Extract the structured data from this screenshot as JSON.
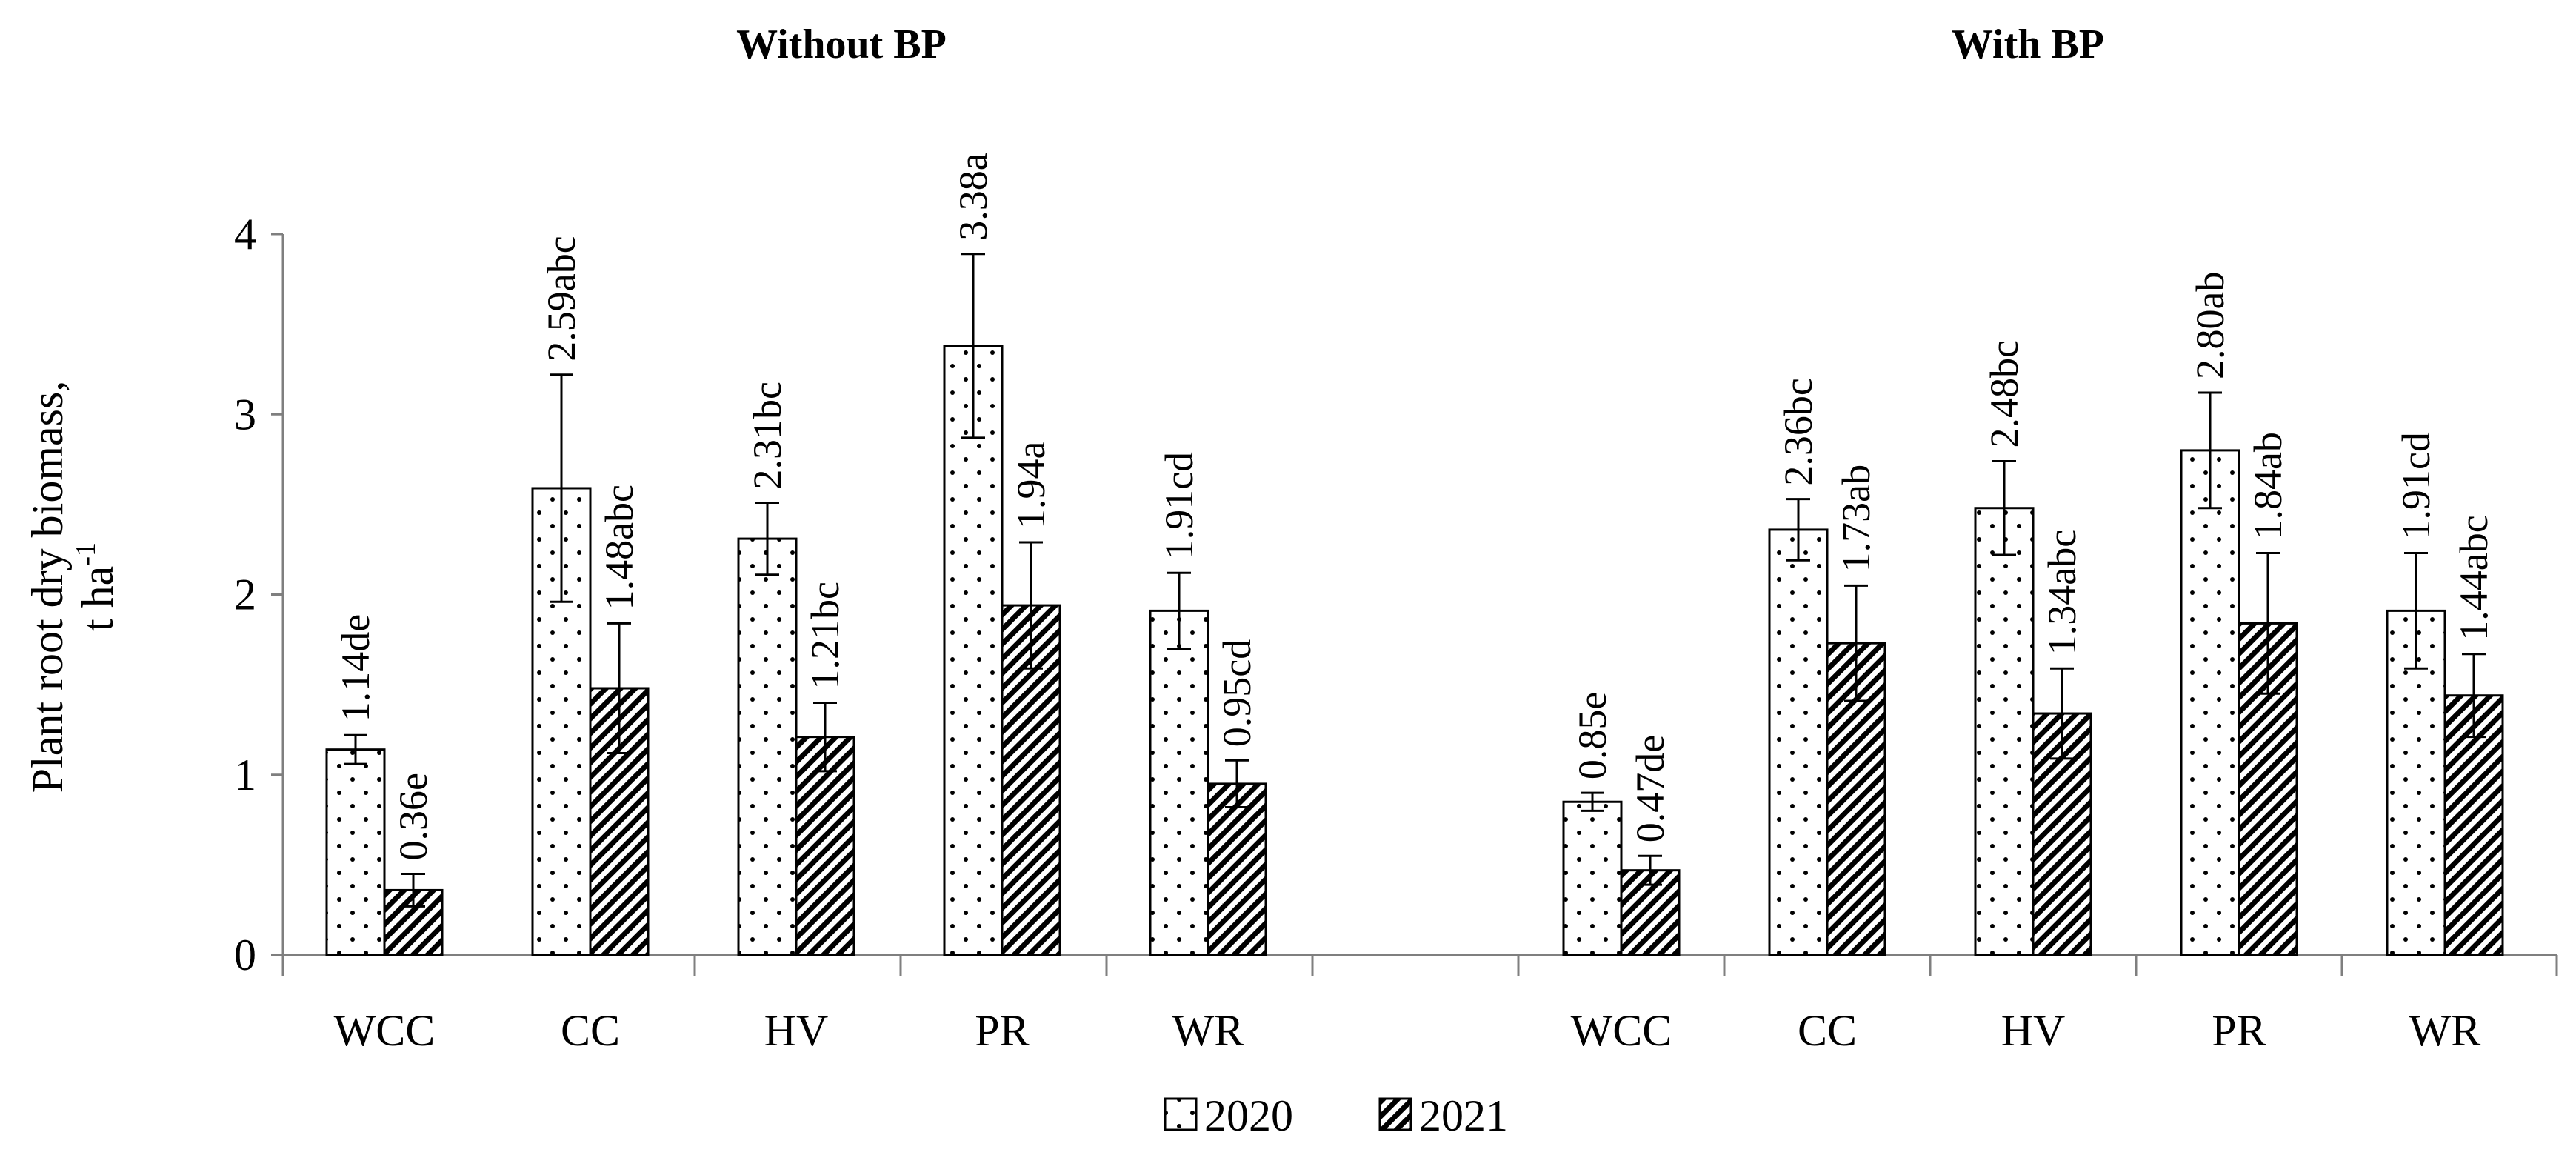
{
  "chart_data": {
    "type": "bar",
    "panels": [
      {
        "title": "Without BP",
        "categories": [
          "WCC",
          "CC",
          "HV",
          "PR",
          "WR"
        ],
        "series": [
          {
            "name": "2020",
            "values": [
              1.14,
              2.59,
              2.31,
              3.38,
              1.91
            ],
            "labels": [
              "1.14de",
              "2.59abc",
              "2.31bc",
              "3.38a",
              "1.91cd"
            ],
            "errors": [
              0.08,
              0.63,
              0.2,
              0.51,
              0.21
            ]
          },
          {
            "name": "2021",
            "values": [
              0.36,
              1.48,
              1.21,
              1.94,
              0.95
            ],
            "labels": [
              "0.36e",
              "1.48abc",
              "1.21bc",
              "1.94a",
              "0.95cd"
            ],
            "errors": [
              0.09,
              0.36,
              0.19,
              0.35,
              0.13
            ]
          }
        ]
      },
      {
        "title": "With BP",
        "categories": [
          "WCC",
          "CC",
          "HV",
          "PR",
          "WR"
        ],
        "series": [
          {
            "name": "2020",
            "values": [
              0.85,
              2.36,
              2.48,
              2.8,
              1.91
            ],
            "labels": [
              "0.85e",
              "2.36bc",
              "2.48bc",
              "2.80ab",
              "1.91cd"
            ],
            "errors": [
              0.05,
              0.17,
              0.26,
              0.32,
              0.32
            ]
          },
          {
            "name": "2021",
            "values": [
              0.47,
              1.73,
              1.34,
              1.84,
              1.44
            ],
            "labels": [
              "0.47de",
              "1.73ab",
              "1.34abc",
              "1.84ab",
              "1.44abc"
            ],
            "errors": [
              0.08,
              0.32,
              0.25,
              0.39,
              0.23
            ]
          }
        ]
      }
    ],
    "ylabel_line1": "Plant root dry biomass,",
    "ylabel_line2_base": "t ha",
    "ylabel_line2_sup": "-1",
    "ylim": [
      0,
      4
    ],
    "yticks": [
      "0",
      "1",
      "2",
      "3",
      "4"
    ],
    "legend": [
      "2020",
      "2021"
    ],
    "legend_position": "bottom-center",
    "grid": false
  },
  "colors": {
    "axis": "#7f7f7f",
    "bar_stroke": "#000000",
    "bar_fill": "#ffffff",
    "pattern_dot": "#000000",
    "pattern_hatch": "#000000"
  }
}
